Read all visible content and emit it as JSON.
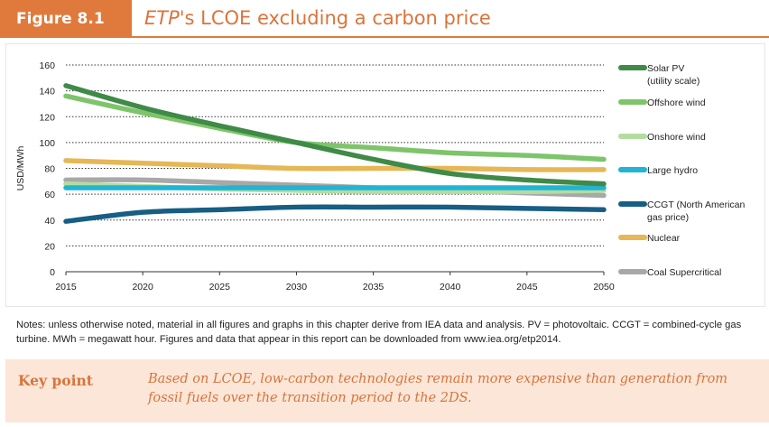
{
  "figure": {
    "tag": "Figure 8.1",
    "title_italic": "ETP",
    "title_rest": "'s LCOE excluding a carbon price"
  },
  "chart_data": {
    "type": "line",
    "ylabel": "USD/MWh",
    "xlabel": "",
    "x": [
      2015,
      2020,
      2025,
      2030,
      2035,
      2040,
      2045,
      2050
    ],
    "xlim": [
      2015,
      2050
    ],
    "ylim": [
      0,
      160
    ],
    "yticks": [
      0,
      20,
      40,
      60,
      80,
      100,
      120,
      140,
      160
    ],
    "grid": "horizontal dotted",
    "legend_position": "right",
    "series": [
      {
        "name": "Solar PV (utility scale)",
        "label_lines": [
          "Solar PV",
          "(utility scale)"
        ],
        "color": "#3f8a47",
        "values": [
          144,
          127,
          113,
          100,
          87,
          76,
          71,
          68
        ]
      },
      {
        "name": "Offshore wind",
        "label_lines": [
          "Offshore wind"
        ],
        "color": "#7ec46b",
        "values": [
          136,
          123,
          111,
          100,
          96,
          92,
          90,
          87
        ]
      },
      {
        "name": "Onshore wind",
        "label_lines": [
          "Onshore wind"
        ],
        "color": "#b4dca0",
        "values": [
          68,
          66,
          64,
          63,
          62,
          62,
          62,
          63
        ]
      },
      {
        "name": "Large hydro",
        "label_lines": [
          "Large hydro"
        ],
        "color": "#21b4d4",
        "values": [
          65,
          65,
          65,
          65,
          65,
          65,
          65,
          65
        ]
      },
      {
        "name": "CCGT (North American gas price)",
        "label_lines": [
          "CCGT (North American",
          "gas price)"
        ],
        "color": "#175e84",
        "values": [
          39,
          46,
          48,
          50,
          50,
          50,
          49,
          48
        ]
      },
      {
        "name": "Nuclear",
        "label_lines": [
          "Nuclear"
        ],
        "color": "#e5b755",
        "values": [
          86,
          84,
          82,
          80,
          80,
          80,
          79,
          79
        ]
      },
      {
        "name": "Coal Supercritical",
        "label_lines": [
          "Coal Supercritical"
        ],
        "color": "#a8a8a8",
        "values": [
          71,
          71,
          69,
          67,
          65,
          63,
          61,
          59
        ]
      }
    ]
  },
  "notes": "Notes: unless otherwise noted, material in all figures and graphs in this chapter derive from IEA data and analysis. PV = photovoltaic. CCGT = combined-cycle gas turbine. MWh = megawatt hour. Figures and data that appear in this report can be downloaded from www.iea.org/etp2014.",
  "key_point": {
    "label": "Key point",
    "text": "Based on LCOE, low-carbon technologies remain more expensive than generation from fossil fuels over the transition period to the 2DS."
  }
}
